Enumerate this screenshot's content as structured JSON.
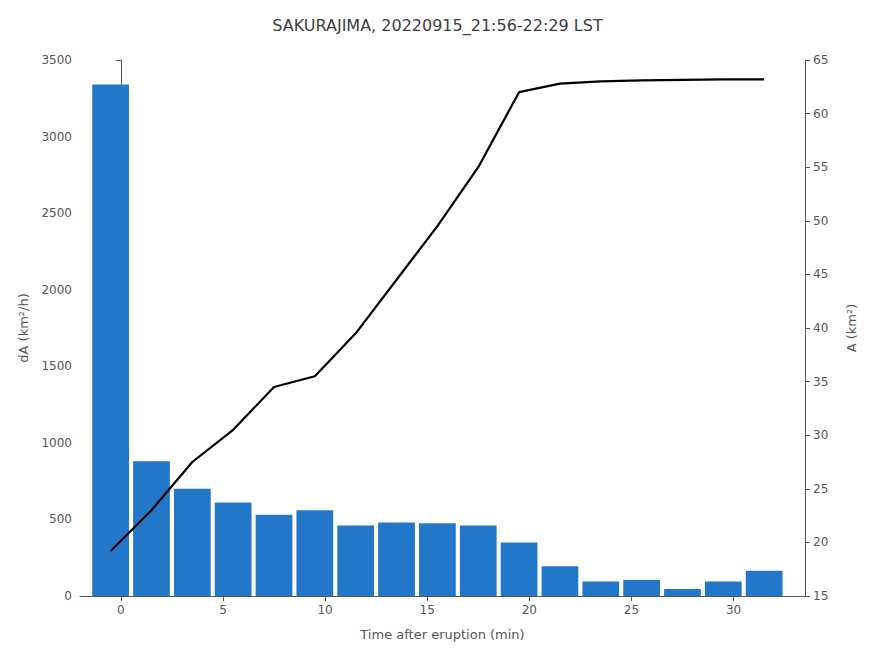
{
  "chart_data": {
    "type": "bar",
    "title": "SAKURAJIMA, 20220915_21:56-22:29 LST",
    "xlabel": "Time after eruption (min)",
    "ylabel": "dA (km²/h)",
    "y2label": "A (km²)",
    "x": [
      -0.5,
      1.5,
      3.5,
      5.5,
      7.5,
      9.5,
      11.5,
      13.5,
      15.5,
      17.5,
      19.5,
      21.5,
      23.5,
      25.5,
      27.5,
      29.5,
      31.5
    ],
    "series": [
      {
        "type": "bar",
        "color": "#2277C8",
        "values": [
          3340,
          880,
          700,
          610,
          530,
          560,
          460,
          480,
          475,
          460,
          350,
          195,
          95,
          105,
          45,
          95,
          165
        ]
      },
      {
        "type": "line",
        "color": "black",
        "axis": "y2",
        "values": [
          19.2,
          23.0,
          27.5,
          30.5,
          34.5,
          35.5,
          39.5,
          44.5,
          49.5,
          55.0,
          62.0,
          62.8,
          63.0,
          63.1,
          63.15,
          63.2,
          63.2
        ]
      }
    ],
    "xlim": [
      -2.0,
      33.5
    ],
    "xticks": [
      0,
      5,
      10,
      15,
      20,
      25,
      30
    ],
    "ylim": [
      0,
      3500
    ],
    "yticks": [
      0,
      500,
      1000,
      1500,
      2000,
      2500,
      3000,
      3500
    ],
    "y2lim": [
      15,
      65
    ],
    "y2ticks": [
      15,
      20,
      25,
      30,
      35,
      40,
      45,
      50,
      55,
      60,
      65
    ],
    "grid": false
  }
}
